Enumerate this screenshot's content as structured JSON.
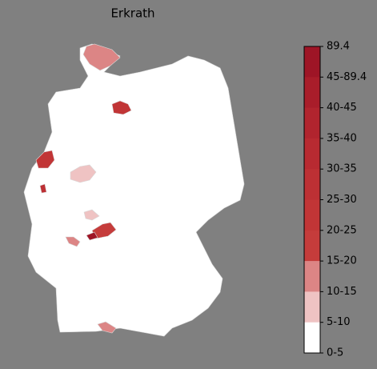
{
  "title": "Erkrath",
  "legend": {
    "labels": [
      "89.4",
      "45-89.4",
      "40-45",
      "35-40",
      "30-35",
      "25-30",
      "20-25",
      "15-20",
      "10-15",
      "5-10",
      "0-5"
    ],
    "colors": [
      "#9e1526",
      "#a91d2a",
      "#b1242e",
      "#b82a31",
      "#bd3034",
      "#c13536",
      "#c53c3b",
      "#dc8585",
      "#efc3c3",
      "#ffffff"
    ]
  }
}
